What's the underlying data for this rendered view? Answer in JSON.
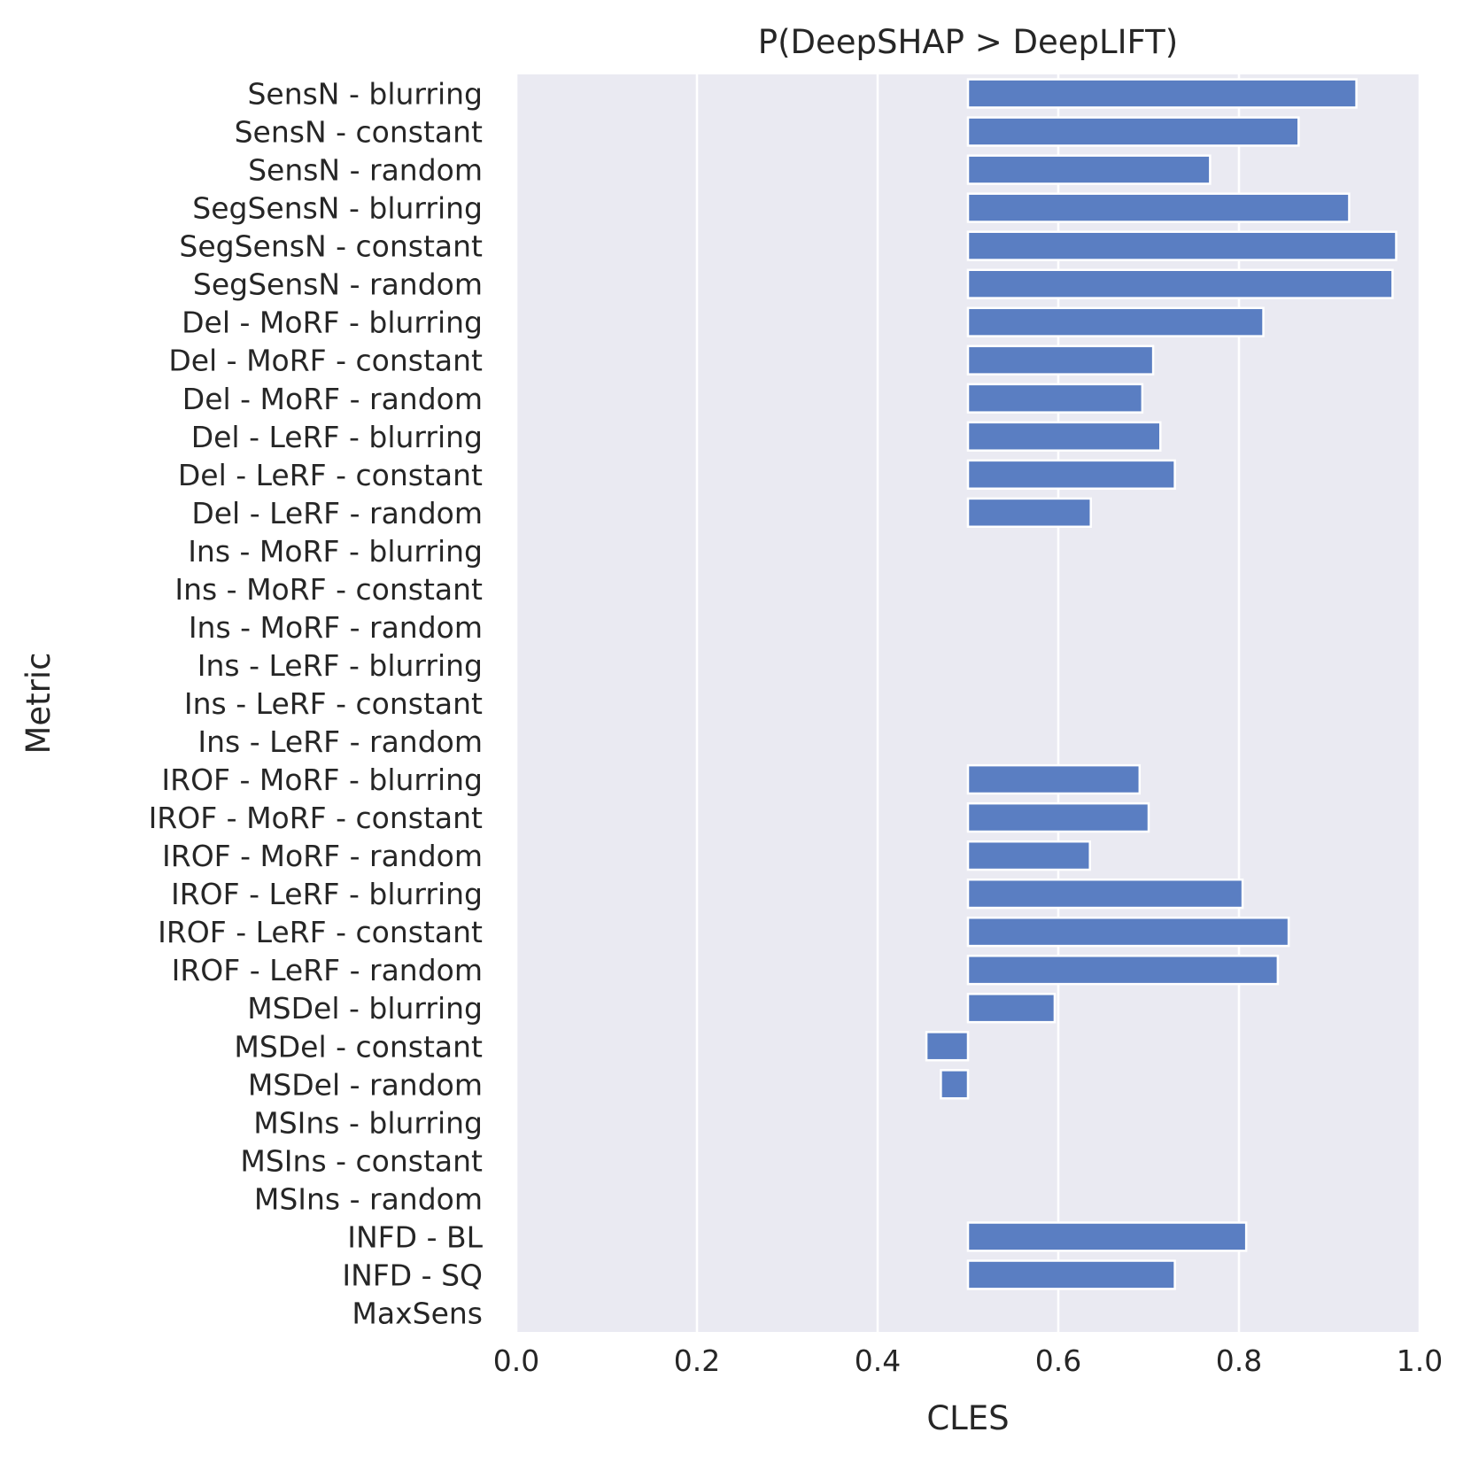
{
  "chart_data": {
    "type": "bar",
    "orientation": "horizontal",
    "title": "P(DeepSHAP > DeepLIFT)",
    "xlabel": "CLES",
    "ylabel": "Metric",
    "xlim": [
      0.0,
      1.0
    ],
    "xticks": [
      "0.0",
      "0.2",
      "0.4",
      "0.6",
      "0.8",
      "1.0"
    ],
    "baseline": 0.5,
    "grid": true,
    "bar_color": "#5a7ec2",
    "background_color": "#eaeaf2",
    "categories": [
      "SensN - blurring",
      "SensN - constant",
      "SensN - random",
      "SegSensN - blurring",
      "SegSensN - constant",
      "SegSensN - random",
      "Del - MoRF - blurring",
      "Del - MoRF - constant",
      "Del - MoRF - random",
      "Del - LeRF - blurring",
      "Del - LeRF - constant",
      "Del - LeRF - random",
      "Ins - MoRF - blurring",
      "Ins - MoRF - constant",
      "Ins - MoRF - random",
      "Ins - LeRF - blurring",
      "Ins - LeRF - constant",
      "Ins - LeRF - random",
      "IROF - MoRF - blurring",
      "IROF - MoRF - constant",
      "IROF - MoRF - random",
      "IROF - LeRF - blurring",
      "IROF - LeRF - constant",
      "IROF - LeRF - random",
      "MSDel - blurring",
      "MSDel - constant",
      "MSDel - random",
      "MSIns - blurring",
      "MSIns - constant",
      "MSIns - random",
      "INFD - BL",
      "INFD - SQ",
      "MaxSens"
    ],
    "values": [
      0.93,
      0.866,
      0.768,
      0.922,
      0.974,
      0.97,
      0.827,
      0.705,
      0.693,
      0.713,
      0.729,
      0.636,
      0.5,
      0.5,
      0.5,
      0.5,
      0.5,
      0.5,
      0.69,
      0.7,
      0.635,
      0.804,
      0.855,
      0.843,
      0.596,
      0.454,
      0.47,
      0.5,
      0.5,
      0.5,
      0.808,
      0.729,
      null
    ]
  }
}
